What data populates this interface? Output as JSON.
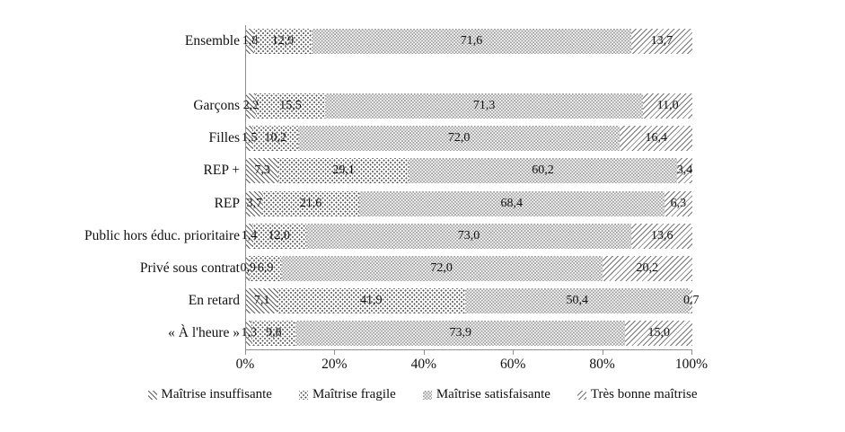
{
  "chart_data": {
    "type": "bar",
    "variant": "stacked-horizontal-percent",
    "title": "",
    "categories": [
      "Ensemble",
      "Garçons",
      "Filles",
      "REP +",
      "REP",
      "Public hors éduc. prioritaire",
      "Privé sous contrat",
      "En retard",
      "« À l'heure »"
    ],
    "gap_after_category_index": 0,
    "series": [
      {
        "name": "Maîtrise insuffisante",
        "pattern": "diagonal-backslash-hatch",
        "values": [
          1.8,
          2.2,
          1.5,
          7.3,
          3.7,
          1.4,
          0.9,
          7.1,
          1.3
        ],
        "labels": [
          "1,8",
          "2,2",
          "1,5",
          "7,3",
          "3,7",
          "1,4",
          "0,9",
          "7,1",
          "1,3"
        ]
      },
      {
        "name": "Maîtrise fragile",
        "pattern": "dots",
        "values": [
          12.9,
          15.5,
          10.2,
          29.1,
          21.6,
          12.0,
          6.9,
          41.9,
          9.8
        ],
        "labels": [
          "12,9",
          "15,5",
          "10,2",
          "29,1",
          "21,6",
          "12,0",
          "6,9",
          "41,9",
          "9,8"
        ]
      },
      {
        "name": "Maîtrise satisfaisante",
        "pattern": "checkerboard",
        "values": [
          71.6,
          71.3,
          72.0,
          60.2,
          68.4,
          73.0,
          72.0,
          50.4,
          73.9
        ],
        "labels": [
          "71,6",
          "71,3",
          "72,0",
          "60,2",
          "68,4",
          "73,0",
          "72,0",
          "50,4",
          "73,9"
        ]
      },
      {
        "name": "Très bonne maîtrise",
        "pattern": "diagonal-slash-hatch",
        "values": [
          13.7,
          11.0,
          16.4,
          3.4,
          6.3,
          13.6,
          20.2,
          0.7,
          15.0
        ],
        "labels": [
          "13,7",
          "11,0",
          "16,4",
          "3,4",
          "6,3",
          "13,6",
          "20,2",
          "0,7",
          "15,0"
        ]
      }
    ],
    "x_axis": {
      "min": 0,
      "max": 100,
      "tick_labels": [
        "0%",
        "20%",
        "40%",
        "60%",
        "80%",
        "100%"
      ],
      "grid": false
    },
    "legend": {
      "position": "bottom",
      "entries": [
        {
          "label": "Maîtrise insuffisante",
          "pattern": "diagonal-backslash-hatch"
        },
        {
          "label": "Maîtrise fragile",
          "pattern": "dots"
        },
        {
          "label": "Maîtrise satisfaisante",
          "pattern": "checkerboard"
        },
        {
          "label": "Très bonne maîtrise",
          "pattern": "diagonal-slash-hatch"
        }
      ]
    },
    "colors": {
      "background": "#ffffff",
      "axis": "#8f8f8f",
      "text": "#111111",
      "hatch_ink_dark": "#5d5d5d",
      "dot_ink": "#4f4f4f",
      "checker_gray": "#9c9c9c",
      "hatch_ink_light": "#767676"
    }
  }
}
